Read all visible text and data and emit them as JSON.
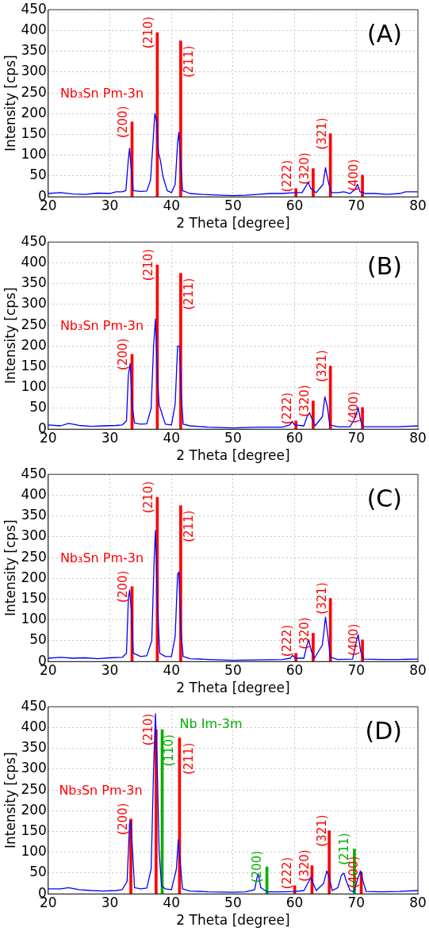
{
  "chart_data": [
    {
      "type": "line",
      "title": "(A)",
      "xlabel": "2 Theta [degree]",
      "ylabel": "Intensity [cps]",
      "xlim": [
        20,
        80
      ],
      "ylim": [
        0,
        450
      ],
      "xticks": [
        20,
        30,
        40,
        50,
        60,
        70,
        80
      ],
      "yticks": [
        0,
        50,
        100,
        150,
        200,
        250,
        300,
        350,
        400,
        450
      ],
      "grid": true,
      "series": [
        {
          "color": "#0000ff",
          "x": [
            20,
            22,
            24,
            26,
            28,
            30,
            31,
            32,
            32.6,
            33.0,
            33.2,
            33.5,
            33.8,
            35,
            36,
            36.6,
            37.0,
            37.3,
            37.6,
            37.9,
            38.2,
            38.6,
            39.3,
            40,
            40.6,
            41.0,
            41.2,
            41.5,
            41.8,
            43,
            45,
            48,
            50,
            52,
            54,
            56,
            58,
            60,
            61.2,
            61.8,
            62.2,
            62.6,
            63.5,
            64.6,
            65.0,
            65.4,
            65.9,
            67,
            68,
            69,
            69.8,
            70.2,
            70.6,
            71.5,
            73,
            75,
            77,
            78,
            80
          ],
          "values": [
            8,
            10,
            7,
            6,
            9,
            8,
            12,
            12,
            15,
            90,
            117,
            60,
            15,
            13,
            14,
            40,
            130,
            200,
            180,
            105,
            88,
            50,
            15,
            10,
            30,
            130,
            155,
            80,
            15,
            8,
            6,
            4,
            3,
            4,
            6,
            8,
            8,
            10,
            10,
            25,
            35,
            20,
            10,
            30,
            70,
            40,
            10,
            10,
            12,
            8,
            18,
            30,
            12,
            8,
            8,
            6,
            8,
            12,
            12
          ]
        },
        {
          "type": "bar",
          "name": "Nb₃Sn Pm-3n",
          "color": "#ff0000",
          "x": [
            33.6,
            37.7,
            41.5,
            60.2,
            63.0,
            65.8,
            71.0
          ],
          "values": [
            180,
            395,
            375,
            20,
            68,
            152,
            52
          ]
        }
      ],
      "annotations": [
        {
          "text": "(200)",
          "x": 33.6,
          "y": 180
        },
        {
          "text": "(210)",
          "x": 37.7,
          "y": 395
        },
        {
          "text": "(211)",
          "x": 41.5,
          "y": 375
        },
        {
          "text": "(222)",
          "x": 60.2,
          "y": 20
        },
        {
          "text": "(320)",
          "x": 63.0,
          "y": 68
        },
        {
          "text": "(321)",
          "x": 65.8,
          "y": 152
        },
        {
          "text": "(400)",
          "x": 71.0,
          "y": 52
        }
      ]
    },
    {
      "type": "line",
      "title": "(B)",
      "xlabel": "2 Theta [degree]",
      "ylabel": "Intensity [cps]",
      "xlim": [
        20,
        80
      ],
      "ylim": [
        0,
        450
      ],
      "xticks": [
        20,
        30,
        40,
        50,
        60,
        70,
        80
      ],
      "yticks": [
        0,
        50,
        100,
        150,
        200,
        250,
        300,
        350,
        400,
        450
      ],
      "grid": true,
      "series": [
        {
          "color": "#0000ff",
          "x": [
            20,
            22,
            23.3,
            25,
            27,
            29,
            31,
            32,
            32.7,
            33.0,
            33.3,
            33.6,
            34,
            35,
            36,
            36.7,
            37.1,
            37.4,
            37.7,
            38.0,
            38.4,
            39,
            40,
            40.6,
            41.0,
            41.3,
            41.6,
            41.9,
            43,
            46,
            50,
            54,
            58,
            59.2,
            59.6,
            60.0,
            61.5,
            62.0,
            62.4,
            62.8,
            63.3,
            64.5,
            64.9,
            65.3,
            65.7,
            67,
            69,
            69.9,
            70.3,
            70.7,
            71.2,
            74,
            77,
            80
          ],
          "values": [
            10,
            8,
            14,
            9,
            7,
            8,
            9,
            10,
            20,
            130,
            158,
            60,
            15,
            12,
            13,
            50,
            200,
            265,
            130,
            58,
            40,
            12,
            10,
            60,
            200,
            200,
            80,
            12,
            8,
            5,
            3,
            5,
            5,
            10,
            18,
            10,
            8,
            30,
            40,
            25,
            8,
            30,
            78,
            55,
            10,
            6,
            6,
            30,
            52,
            20,
            6,
            6,
            6,
            8
          ]
        },
        {
          "type": "bar",
          "name": "Nb₃Sn Pm-3n",
          "color": "#ff0000",
          "x": [
            33.6,
            37.7,
            41.5,
            60.2,
            63.0,
            65.8,
            71.0
          ],
          "values": [
            180,
            395,
            375,
            20,
            68,
            152,
            52
          ]
        }
      ],
      "annotations": [
        {
          "text": "(200)",
          "x": 33.6,
          "y": 180
        },
        {
          "text": "(210)",
          "x": 37.7,
          "y": 395
        },
        {
          "text": "(211)",
          "x": 41.5,
          "y": 375
        },
        {
          "text": "(222)",
          "x": 60.2,
          "y": 20
        },
        {
          "text": "(320)",
          "x": 63.0,
          "y": 68
        },
        {
          "text": "(321)",
          "x": 65.8,
          "y": 152
        },
        {
          "text": "(400)",
          "x": 71.0,
          "y": 52
        }
      ]
    },
    {
      "type": "line",
      "title": "(C)",
      "xlabel": "2 Theta [degree]",
      "ylabel": "Intensity [cps]",
      "xlim": [
        20,
        80
      ],
      "ylim": [
        0,
        450
      ],
      "xticks": [
        20,
        30,
        40,
        50,
        60,
        70,
        80
      ],
      "yticks": [
        0,
        50,
        100,
        150,
        200,
        250,
        300,
        350,
        400,
        450
      ],
      "grid": true,
      "series": [
        {
          "color": "#0000ff",
          "x": [
            20,
            22,
            24,
            26,
            28,
            30,
            32,
            32.7,
            33.0,
            33.2,
            33.5,
            33.8,
            35,
            36,
            36.8,
            37.2,
            37.4,
            37.7,
            38.1,
            39,
            40,
            40.6,
            41.0,
            41.2,
            41.5,
            41.9,
            43,
            46,
            50,
            54,
            58,
            59.3,
            59.7,
            60.1,
            61.5,
            62.0,
            62.3,
            62.7,
            63.2,
            64.5,
            65.0,
            65.4,
            65.8,
            67,
            69.4,
            69.9,
            70.3,
            70.7,
            71.2,
            74,
            77,
            80
          ],
          "values": [
            8,
            10,
            8,
            9,
            7,
            9,
            10,
            20,
            150,
            172,
            120,
            20,
            12,
            14,
            50,
            250,
            315,
            150,
            20,
            12,
            12,
            60,
            210,
            215,
            80,
            12,
            7,
            5,
            3,
            4,
            5,
            8,
            15,
            8,
            8,
            40,
            52,
            25,
            8,
            40,
            107,
            60,
            10,
            5,
            6,
            40,
            65,
            25,
            6,
            5,
            5,
            6
          ]
        },
        {
          "type": "bar",
          "name": "Nb₃Sn Pm-3n",
          "color": "#ff0000",
          "x": [
            33.6,
            37.7,
            41.5,
            60.2,
            63.0,
            65.8,
            71.0
          ],
          "values": [
            180,
            395,
            375,
            20,
            68,
            152,
            52
          ]
        }
      ],
      "annotations": [
        {
          "text": "(200)",
          "x": 33.6,
          "y": 180
        },
        {
          "text": "(210)",
          "x": 37.7,
          "y": 395
        },
        {
          "text": "(211)",
          "x": 41.5,
          "y": 375
        },
        {
          "text": "(222)",
          "x": 60.2,
          "y": 20
        },
        {
          "text": "(320)",
          "x": 63.0,
          "y": 68
        },
        {
          "text": "(321)",
          "x": 65.8,
          "y": 152
        },
        {
          "text": "(400)",
          "x": 71.0,
          "y": 52
        }
      ]
    },
    {
      "type": "line",
      "title": "(D)",
      "xlabel": "2 Theta [degree]",
      "ylabel": "Intensity [cps]",
      "xlim": [
        20,
        80
      ],
      "ylim": [
        0,
        450
      ],
      "xticks": [
        20,
        30,
        40,
        50,
        60,
        70,
        80
      ],
      "yticks": [
        0,
        50,
        100,
        150,
        200,
        250,
        300,
        350,
        400,
        450
      ],
      "grid": true,
      "series": [
        {
          "color": "#0000ff",
          "x": [
            20,
            22,
            23.3,
            25,
            27,
            29,
            31,
            32,
            32.8,
            33.2,
            33.4,
            33.7,
            34,
            35,
            36,
            36.7,
            37.1,
            37.4,
            37.7,
            38.0,
            38.4,
            39,
            40,
            40.8,
            41.1,
            41.4,
            41.8,
            43,
            46,
            50,
            52,
            53.5,
            53.9,
            54.1,
            54.5,
            55.5,
            58,
            60,
            61.5,
            62.3,
            62.6,
            63.0,
            63.5,
            64.7,
            65.2,
            65.6,
            66.1,
            67.0,
            67.6,
            68.0,
            68.4,
            69.0,
            69.6,
            70.3,
            70.7,
            71.1,
            71.6,
            74,
            77,
            80
          ],
          "values": [
            12,
            12,
            15,
            10,
            8,
            7,
            8,
            10,
            30,
            170,
            175,
            100,
            15,
            12,
            14,
            60,
            300,
            433,
            300,
            100,
            20,
            12,
            10,
            60,
            130,
            80,
            12,
            7,
            5,
            4,
            5,
            10,
            40,
            48,
            15,
            5,
            5,
            6,
            8,
            30,
            40,
            25,
            8,
            25,
            55,
            40,
            8,
            15,
            45,
            50,
            30,
            8,
            5,
            40,
            55,
            30,
            6,
            5,
            6,
            8
          ]
        },
        {
          "type": "bar",
          "name": "Nb₃Sn Pm-3n",
          "color": "#ff0000",
          "x": [
            33.6,
            37.7,
            41.5,
            60.2,
            63.0,
            65.8,
            71.0
          ],
          "values": [
            180,
            395,
            375,
            20,
            68,
            152,
            52
          ]
        },
        {
          "type": "bar",
          "name": "Nb Im-3m",
          "color": "#00b000",
          "x": [
            38.3,
            55.3,
            69.5
          ],
          "values": [
            395,
            65,
            108
          ]
        }
      ],
      "annotations": [
        {
          "text": "(200)",
          "x": 33.6,
          "y": 180
        },
        {
          "text": "(210)",
          "x": 37.7,
          "y": 395
        },
        {
          "text": "(211)",
          "x": 41.5,
          "y": 375
        },
        {
          "text": "(222)",
          "x": 60.2,
          "y": 20
        },
        {
          "text": "(320)",
          "x": 63.0,
          "y": 68
        },
        {
          "text": "(321)",
          "x": 65.8,
          "y": 152
        },
        {
          "text": "(400)",
          "x": 71.0,
          "y": 52
        },
        {
          "text": "(110)",
          "x": 38.3,
          "y": 395
        },
        {
          "text": "(200)",
          "x": 55.3,
          "y": 65
        },
        {
          "text": "(211)",
          "x": 69.5,
          "y": 108
        }
      ]
    }
  ]
}
